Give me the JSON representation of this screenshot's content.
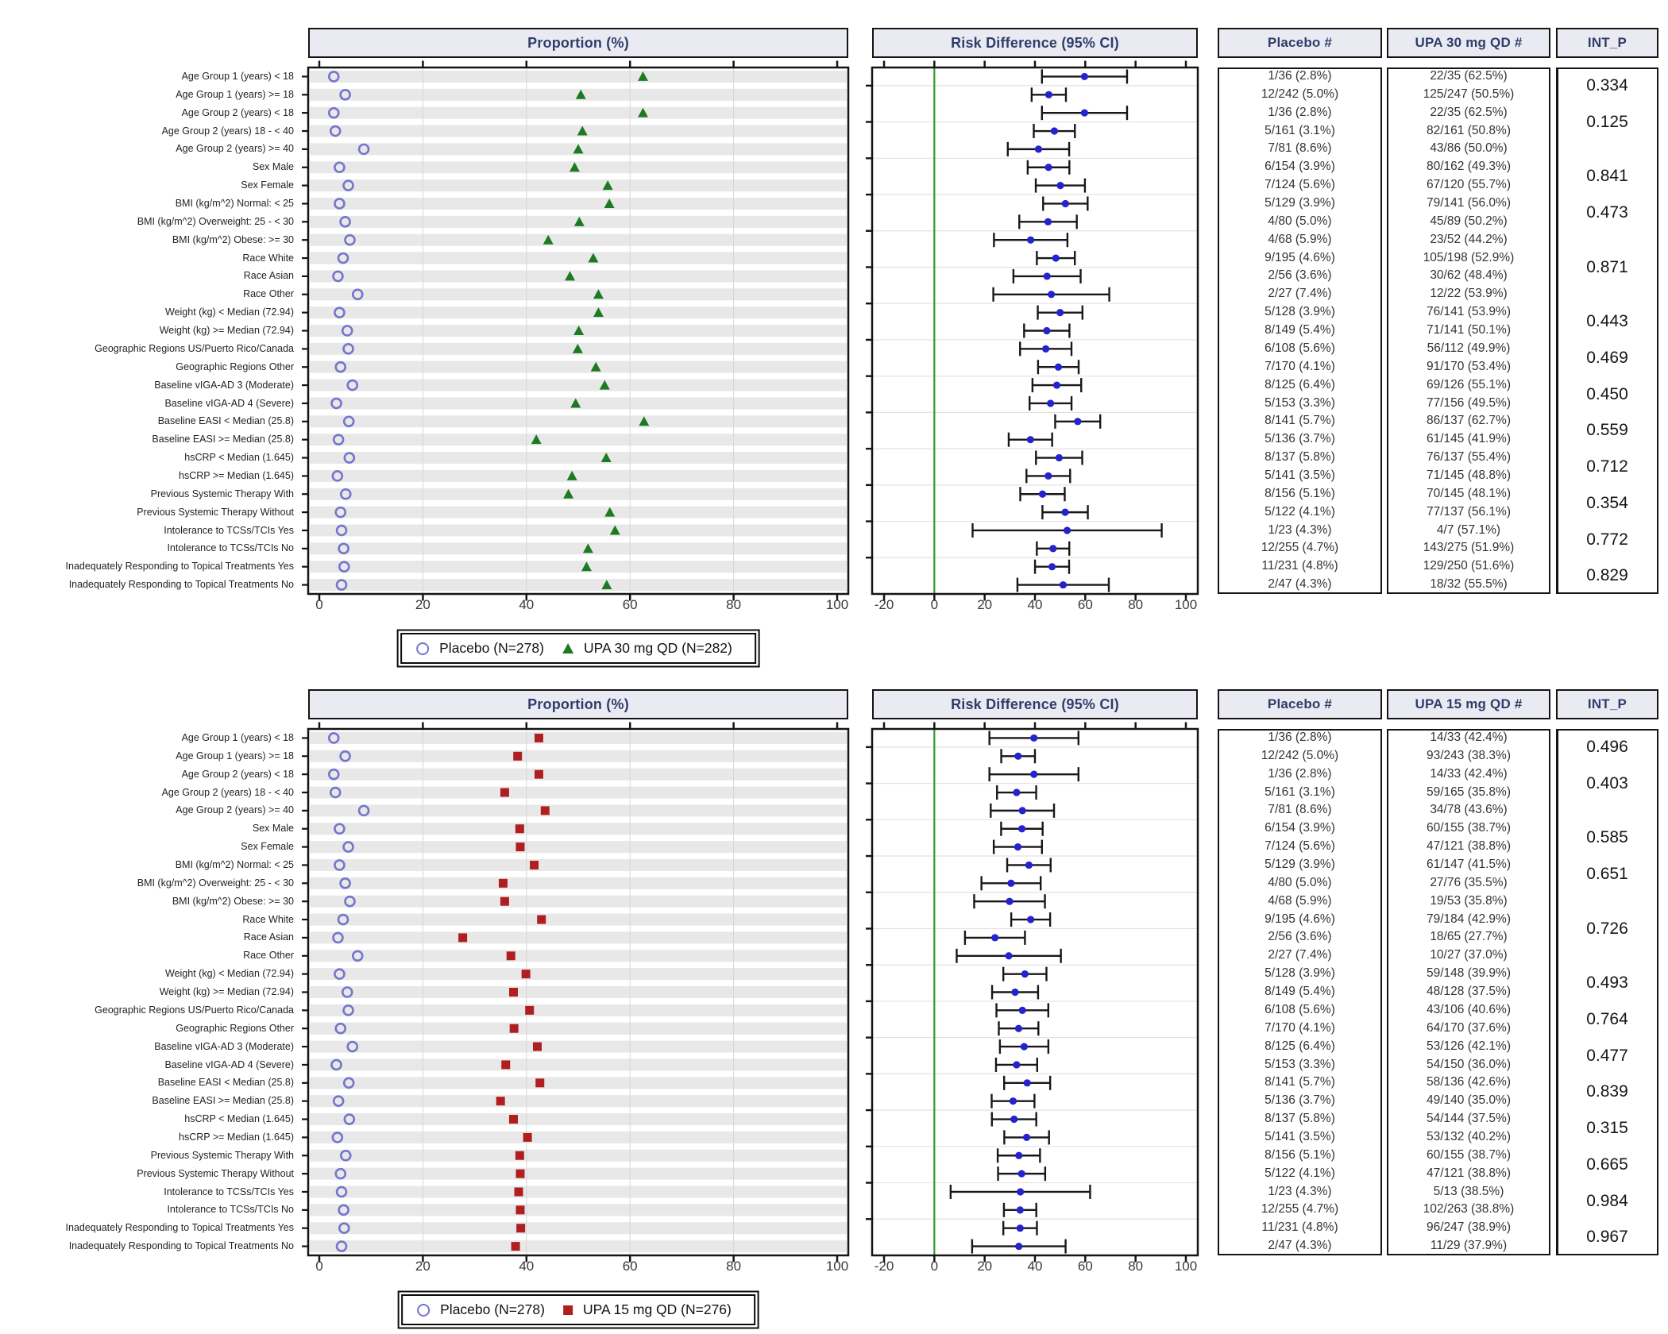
{
  "colors": {
    "placebo_marker": "#7575cc",
    "upa30_marker": "#1d7a22",
    "upa15_marker": "#b01f1f",
    "rd_marker": "#2323cf",
    "zero_line": "#2e9e2e",
    "stripe": "#e8e8e8",
    "grid": "#d6d6d6",
    "header_bg": "#eaebf2",
    "header_text": "#303d6b"
  },
  "chart_data": [
    {
      "type": "forest",
      "headers": {
        "proportion": "Proportion (%)",
        "risk": "Risk Difference (95% CI)",
        "placebo": "Placebo #",
        "treatment": "UPA 30 mg QD #",
        "int_p": "INT_P"
      },
      "legend": {
        "placebo": "Placebo (N=278)",
        "treatment": "UPA 30 mg QD (N=282)"
      },
      "treatment_marker": "triangle",
      "prop_axis": {
        "ticks": [
          0,
          20,
          40,
          60,
          80,
          100
        ],
        "range": [
          0,
          100
        ]
      },
      "rd_axis": {
        "ticks": [
          -20,
          0,
          20,
          40,
          60,
          80,
          100
        ],
        "range": [
          -20,
          100
        ],
        "refline": 0
      },
      "rows": [
        {
          "label": "Age Group 1 (years) < 18",
          "placebo": {
            "n": 1,
            "N": 36,
            "pct": 2.8
          },
          "treatment": {
            "n": 22,
            "N": 35,
            "pct": 62.5
          }
        },
        {
          "label": "Age Group 1 (years) >= 18",
          "placebo": {
            "n": 12,
            "N": 242,
            "pct": 5.0
          },
          "treatment": {
            "n": 125,
            "N": 247,
            "pct": 50.5
          }
        },
        {
          "label": "Age Group 2 (years) < 18",
          "placebo": {
            "n": 1,
            "N": 36,
            "pct": 2.8
          },
          "treatment": {
            "n": 22,
            "N": 35,
            "pct": 62.5
          }
        },
        {
          "label": "Age Group 2 (years) 18 - < 40",
          "placebo": {
            "n": 5,
            "N": 161,
            "pct": 3.1
          },
          "treatment": {
            "n": 82,
            "N": 161,
            "pct": 50.8
          }
        },
        {
          "label": "Age Group 2 (years) >= 40",
          "placebo": {
            "n": 7,
            "N": 81,
            "pct": 8.6
          },
          "treatment": {
            "n": 43,
            "N": 86,
            "pct": 50.0
          }
        },
        {
          "label": "Sex Male",
          "placebo": {
            "n": 6,
            "N": 154,
            "pct": 3.9
          },
          "treatment": {
            "n": 80,
            "N": 162,
            "pct": 49.3
          }
        },
        {
          "label": "Sex Female",
          "placebo": {
            "n": 7,
            "N": 124,
            "pct": 5.6
          },
          "treatment": {
            "n": 67,
            "N": 120,
            "pct": 55.7
          }
        },
        {
          "label": "BMI (kg/m^2) Normal: < 25",
          "placebo": {
            "n": 5,
            "N": 129,
            "pct": 3.9
          },
          "treatment": {
            "n": 79,
            "N": 141,
            "pct": 56.0
          }
        },
        {
          "label": "BMI (kg/m^2) Overweight: 25 - < 30",
          "placebo": {
            "n": 4,
            "N": 80,
            "pct": 5.0
          },
          "treatment": {
            "n": 45,
            "N": 89,
            "pct": 50.2
          }
        },
        {
          "label": "BMI (kg/m^2) Obese: >= 30",
          "placebo": {
            "n": 4,
            "N": 68,
            "pct": 5.9
          },
          "treatment": {
            "n": 23,
            "N": 52,
            "pct": 44.2
          }
        },
        {
          "label": "Race White",
          "placebo": {
            "n": 9,
            "N": 195,
            "pct": 4.6
          },
          "treatment": {
            "n": 105,
            "N": 198,
            "pct": 52.9
          }
        },
        {
          "label": "Race Asian",
          "placebo": {
            "n": 2,
            "N": 56,
            "pct": 3.6
          },
          "treatment": {
            "n": 30,
            "N": 62,
            "pct": 48.4
          }
        },
        {
          "label": "Race Other",
          "placebo": {
            "n": 2,
            "N": 27,
            "pct": 7.4
          },
          "treatment": {
            "n": 12,
            "N": 22,
            "pct": 53.9
          }
        },
        {
          "label": "Weight (kg) < Median (72.94)",
          "placebo": {
            "n": 5,
            "N": 128,
            "pct": 3.9
          },
          "treatment": {
            "n": 76,
            "N": 141,
            "pct": 53.9
          }
        },
        {
          "label": "Weight (kg) >= Median (72.94)",
          "placebo": {
            "n": 8,
            "N": 149,
            "pct": 5.4
          },
          "treatment": {
            "n": 71,
            "N": 141,
            "pct": 50.1
          }
        },
        {
          "label": "Geographic Regions US/Puerto Rico/Canada",
          "placebo": {
            "n": 6,
            "N": 108,
            "pct": 5.6
          },
          "treatment": {
            "n": 56,
            "N": 112,
            "pct": 49.9
          }
        },
        {
          "label": "Geographic Regions Other",
          "placebo": {
            "n": 7,
            "N": 170,
            "pct": 4.1
          },
          "treatment": {
            "n": 91,
            "N": 170,
            "pct": 53.4
          }
        },
        {
          "label": "Baseline vIGA-AD 3 (Moderate)",
          "placebo": {
            "n": 8,
            "N": 125,
            "pct": 6.4
          },
          "treatment": {
            "n": 69,
            "N": 126,
            "pct": 55.1
          }
        },
        {
          "label": "Baseline vIGA-AD 4 (Severe)",
          "placebo": {
            "n": 5,
            "N": 153,
            "pct": 3.3
          },
          "treatment": {
            "n": 77,
            "N": 156,
            "pct": 49.5
          }
        },
        {
          "label": "Baseline EASI < Median (25.8)",
          "placebo": {
            "n": 8,
            "N": 141,
            "pct": 5.7
          },
          "treatment": {
            "n": 86,
            "N": 137,
            "pct": 62.7
          }
        },
        {
          "label": "Baseline EASI >= Median (25.8)",
          "placebo": {
            "n": 5,
            "N": 136,
            "pct": 3.7
          },
          "treatment": {
            "n": 61,
            "N": 145,
            "pct": 41.9
          }
        },
        {
          "label": "hsCRP < Median (1.645)",
          "placebo": {
            "n": 8,
            "N": 137,
            "pct": 5.8
          },
          "treatment": {
            "n": 76,
            "N": 137,
            "pct": 55.4
          }
        },
        {
          "label": "hsCRP >= Median (1.645)",
          "placebo": {
            "n": 5,
            "N": 141,
            "pct": 3.5
          },
          "treatment": {
            "n": 71,
            "N": 145,
            "pct": 48.8
          }
        },
        {
          "label": "Previous Systemic Therapy With",
          "placebo": {
            "n": 8,
            "N": 156,
            "pct": 5.1
          },
          "treatment": {
            "n": 70,
            "N": 145,
            "pct": 48.1
          }
        },
        {
          "label": "Previous Systemic Therapy Without",
          "placebo": {
            "n": 5,
            "N": 122,
            "pct": 4.1
          },
          "treatment": {
            "n": 77,
            "N": 137,
            "pct": 56.1
          }
        },
        {
          "label": "Intolerance to TCSs/TCIs Yes",
          "placebo": {
            "n": 1,
            "N": 23,
            "pct": 4.3
          },
          "treatment": {
            "n": 4,
            "N": 7,
            "pct": 57.1
          }
        },
        {
          "label": "Intolerance to TCSs/TCIs No",
          "placebo": {
            "n": 12,
            "N": 255,
            "pct": 4.7
          },
          "treatment": {
            "n": 143,
            "N": 275,
            "pct": 51.9
          }
        },
        {
          "label": "Inadequately Responding to Topical Treatments Yes",
          "placebo": {
            "n": 11,
            "N": 231,
            "pct": 4.8
          },
          "treatment": {
            "n": 129,
            "N": 250,
            "pct": 51.6
          }
        },
        {
          "label": "Inadequately Responding to Topical Treatments No",
          "placebo": {
            "n": 2,
            "N": 47,
            "pct": 4.3
          },
          "treatment": {
            "n": 18,
            "N": 32,
            "pct": 55.5
          }
        }
      ],
      "int_p": [
        {
          "value": "0.334",
          "row": 0
        },
        {
          "value": "0.125",
          "row": 2
        },
        {
          "value": "0.841",
          "row": 5
        },
        {
          "value": "0.473",
          "row": 7
        },
        {
          "value": "0.871",
          "row": 10
        },
        {
          "value": "0.443",
          "row": 13
        },
        {
          "value": "0.469",
          "row": 15
        },
        {
          "value": "0.450",
          "row": 17
        },
        {
          "value": "0.559",
          "row": 19
        },
        {
          "value": "0.712",
          "row": 21
        },
        {
          "value": "0.354",
          "row": 23
        },
        {
          "value": "0.772",
          "row": 25
        },
        {
          "value": "0.829",
          "row": 27
        }
      ]
    },
    {
      "type": "forest",
      "headers": {
        "proportion": "Proportion (%)",
        "risk": "Risk Difference (95% CI)",
        "placebo": "Placebo #",
        "treatment": "UPA 15 mg QD #",
        "int_p": "INT_P"
      },
      "legend": {
        "placebo": "Placebo (N=278)",
        "treatment": "UPA 15 mg QD (N=276)"
      },
      "treatment_marker": "square",
      "prop_axis": {
        "ticks": [
          0,
          20,
          40,
          60,
          80,
          100
        ],
        "range": [
          0,
          100
        ]
      },
      "rd_axis": {
        "ticks": [
          -20,
          0,
          20,
          40,
          60,
          80,
          100
        ],
        "range": [
          -20,
          100
        ],
        "refline": 0
      },
      "rows": [
        {
          "label": "Age Group 1 (years) < 18",
          "placebo": {
            "n": 1,
            "N": 36,
            "pct": 2.8
          },
          "treatment": {
            "n": 14,
            "N": 33,
            "pct": 42.4
          }
        },
        {
          "label": "Age Group 1 (years) >= 18",
          "placebo": {
            "n": 12,
            "N": 242,
            "pct": 5.0
          },
          "treatment": {
            "n": 93,
            "N": 243,
            "pct": 38.3
          }
        },
        {
          "label": "Age Group 2 (years) < 18",
          "placebo": {
            "n": 1,
            "N": 36,
            "pct": 2.8
          },
          "treatment": {
            "n": 14,
            "N": 33,
            "pct": 42.4
          }
        },
        {
          "label": "Age Group 2 (years) 18 - < 40",
          "placebo": {
            "n": 5,
            "N": 161,
            "pct": 3.1
          },
          "treatment": {
            "n": 59,
            "N": 165,
            "pct": 35.8
          }
        },
        {
          "label": "Age Group 2 (years) >= 40",
          "placebo": {
            "n": 7,
            "N": 81,
            "pct": 8.6
          },
          "treatment": {
            "n": 34,
            "N": 78,
            "pct": 43.6
          }
        },
        {
          "label": "Sex Male",
          "placebo": {
            "n": 6,
            "N": 154,
            "pct": 3.9
          },
          "treatment": {
            "n": 60,
            "N": 155,
            "pct": 38.7
          }
        },
        {
          "label": "Sex Female",
          "placebo": {
            "n": 7,
            "N": 124,
            "pct": 5.6
          },
          "treatment": {
            "n": 47,
            "N": 121,
            "pct": 38.8
          }
        },
        {
          "label": "BMI (kg/m^2) Normal: < 25",
          "placebo": {
            "n": 5,
            "N": 129,
            "pct": 3.9
          },
          "treatment": {
            "n": 61,
            "N": 147,
            "pct": 41.5
          }
        },
        {
          "label": "BMI (kg/m^2) Overweight: 25 - < 30",
          "placebo": {
            "n": 4,
            "N": 80,
            "pct": 5.0
          },
          "treatment": {
            "n": 27,
            "N": 76,
            "pct": 35.5
          }
        },
        {
          "label": "BMI (kg/m^2) Obese: >= 30",
          "placebo": {
            "n": 4,
            "N": 68,
            "pct": 5.9
          },
          "treatment": {
            "n": 19,
            "N": 53,
            "pct": 35.8
          }
        },
        {
          "label": "Race White",
          "placebo": {
            "n": 9,
            "N": 195,
            "pct": 4.6
          },
          "treatment": {
            "n": 79,
            "N": 184,
            "pct": 42.9
          }
        },
        {
          "label": "Race Asian",
          "placebo": {
            "n": 2,
            "N": 56,
            "pct": 3.6
          },
          "treatment": {
            "n": 18,
            "N": 65,
            "pct": 27.7
          }
        },
        {
          "label": "Race Other",
          "placebo": {
            "n": 2,
            "N": 27,
            "pct": 7.4
          },
          "treatment": {
            "n": 10,
            "N": 27,
            "pct": 37.0
          }
        },
        {
          "label": "Weight (kg) < Median (72.94)",
          "placebo": {
            "n": 5,
            "N": 128,
            "pct": 3.9
          },
          "treatment": {
            "n": 59,
            "N": 148,
            "pct": 39.9
          }
        },
        {
          "label": "Weight (kg) >= Median (72.94)",
          "placebo": {
            "n": 8,
            "N": 149,
            "pct": 5.4
          },
          "treatment": {
            "n": 48,
            "N": 128,
            "pct": 37.5
          }
        },
        {
          "label": "Geographic Regions US/Puerto Rico/Canada",
          "placebo": {
            "n": 6,
            "N": 108,
            "pct": 5.6
          },
          "treatment": {
            "n": 43,
            "N": 106,
            "pct": 40.6
          }
        },
        {
          "label": "Geographic Regions Other",
          "placebo": {
            "n": 7,
            "N": 170,
            "pct": 4.1
          },
          "treatment": {
            "n": 64,
            "N": 170,
            "pct": 37.6
          }
        },
        {
          "label": "Baseline vIGA-AD 3 (Moderate)",
          "placebo": {
            "n": 8,
            "N": 125,
            "pct": 6.4
          },
          "treatment": {
            "n": 53,
            "N": 126,
            "pct": 42.1
          }
        },
        {
          "label": "Baseline vIGA-AD 4 (Severe)",
          "placebo": {
            "n": 5,
            "N": 153,
            "pct": 3.3
          },
          "treatment": {
            "n": 54,
            "N": 150,
            "pct": 36.0
          }
        },
        {
          "label": "Baseline EASI < Median (25.8)",
          "placebo": {
            "n": 8,
            "N": 141,
            "pct": 5.7
          },
          "treatment": {
            "n": 58,
            "N": 136,
            "pct": 42.6
          }
        },
        {
          "label": "Baseline EASI >= Median (25.8)",
          "placebo": {
            "n": 5,
            "N": 136,
            "pct": 3.7
          },
          "treatment": {
            "n": 49,
            "N": 140,
            "pct": 35.0
          }
        },
        {
          "label": "hsCRP < Median (1.645)",
          "placebo": {
            "n": 8,
            "N": 137,
            "pct": 5.8
          },
          "treatment": {
            "n": 54,
            "N": 144,
            "pct": 37.5
          }
        },
        {
          "label": "hsCRP >= Median (1.645)",
          "placebo": {
            "n": 5,
            "N": 141,
            "pct": 3.5
          },
          "treatment": {
            "n": 53,
            "N": 132,
            "pct": 40.2
          }
        },
        {
          "label": "Previous Systemic Therapy With",
          "placebo": {
            "n": 8,
            "N": 156,
            "pct": 5.1
          },
          "treatment": {
            "n": 60,
            "N": 155,
            "pct": 38.7
          }
        },
        {
          "label": "Previous Systemic Therapy Without",
          "placebo": {
            "n": 5,
            "N": 122,
            "pct": 4.1
          },
          "treatment": {
            "n": 47,
            "N": 121,
            "pct": 38.8
          }
        },
        {
          "label": "Intolerance to TCSs/TCIs Yes",
          "placebo": {
            "n": 1,
            "N": 23,
            "pct": 4.3
          },
          "treatment": {
            "n": 5,
            "N": 13,
            "pct": 38.5
          }
        },
        {
          "label": "Intolerance to TCSs/TCIs No",
          "placebo": {
            "n": 12,
            "N": 255,
            "pct": 4.7
          },
          "treatment": {
            "n": 102,
            "N": 263,
            "pct": 38.8
          }
        },
        {
          "label": "Inadequately Responding to Topical Treatments Yes",
          "placebo": {
            "n": 11,
            "N": 231,
            "pct": 4.8
          },
          "treatment": {
            "n": 96,
            "N": 247,
            "pct": 38.9
          }
        },
        {
          "label": "Inadequately Responding to Topical Treatments No",
          "placebo": {
            "n": 2,
            "N": 47,
            "pct": 4.3
          },
          "treatment": {
            "n": 11,
            "N": 29,
            "pct": 37.9
          }
        }
      ],
      "int_p": [
        {
          "value": "0.496",
          "row": 0
        },
        {
          "value": "0.403",
          "row": 2
        },
        {
          "value": "0.585",
          "row": 5
        },
        {
          "value": "0.651",
          "row": 7
        },
        {
          "value": "0.726",
          "row": 10
        },
        {
          "value": "0.493",
          "row": 13
        },
        {
          "value": "0.764",
          "row": 15
        },
        {
          "value": "0.477",
          "row": 17
        },
        {
          "value": "0.839",
          "row": 19
        },
        {
          "value": "0.315",
          "row": 21
        },
        {
          "value": "0.665",
          "row": 23
        },
        {
          "value": "0.984",
          "row": 25
        },
        {
          "value": "0.967",
          "row": 27
        }
      ]
    }
  ]
}
